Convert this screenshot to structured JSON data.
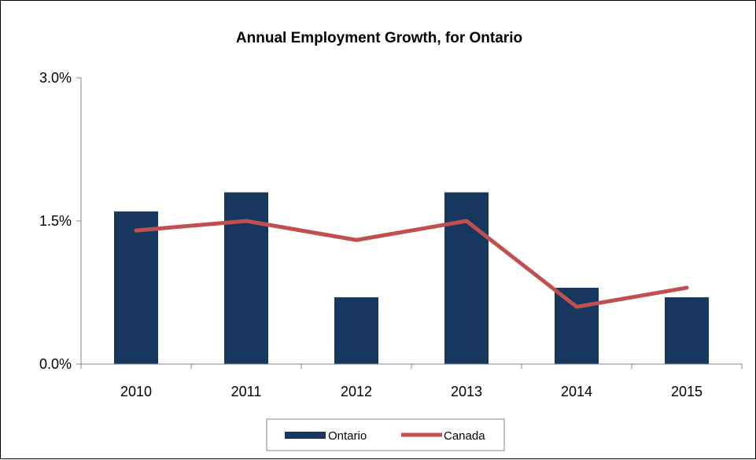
{
  "chart_data": {
    "type": "bar",
    "title": "Annual Employment Growth, for Ontario",
    "categories": [
      "2010",
      "2011",
      "2012",
      "2013",
      "2014",
      "2015"
    ],
    "series": [
      {
        "name": "Ontario",
        "kind": "bar",
        "color": "#17375e",
        "values": [
          1.6,
          1.8,
          0.7,
          1.8,
          0.8,
          0.7
        ]
      },
      {
        "name": "Canada",
        "kind": "line",
        "color": "#c0504d",
        "values": [
          1.4,
          1.5,
          1.3,
          1.5,
          0.6,
          0.8
        ]
      }
    ],
    "ylim": [
      0,
      3.0
    ],
    "yticks": [
      0,
      1.5,
      3.0
    ],
    "ytick_labels": [
      "0.0%",
      "1.5%",
      "3.0%"
    ],
    "xlabel": "",
    "ylabel": "",
    "grid": false,
    "legend": "bottom"
  }
}
